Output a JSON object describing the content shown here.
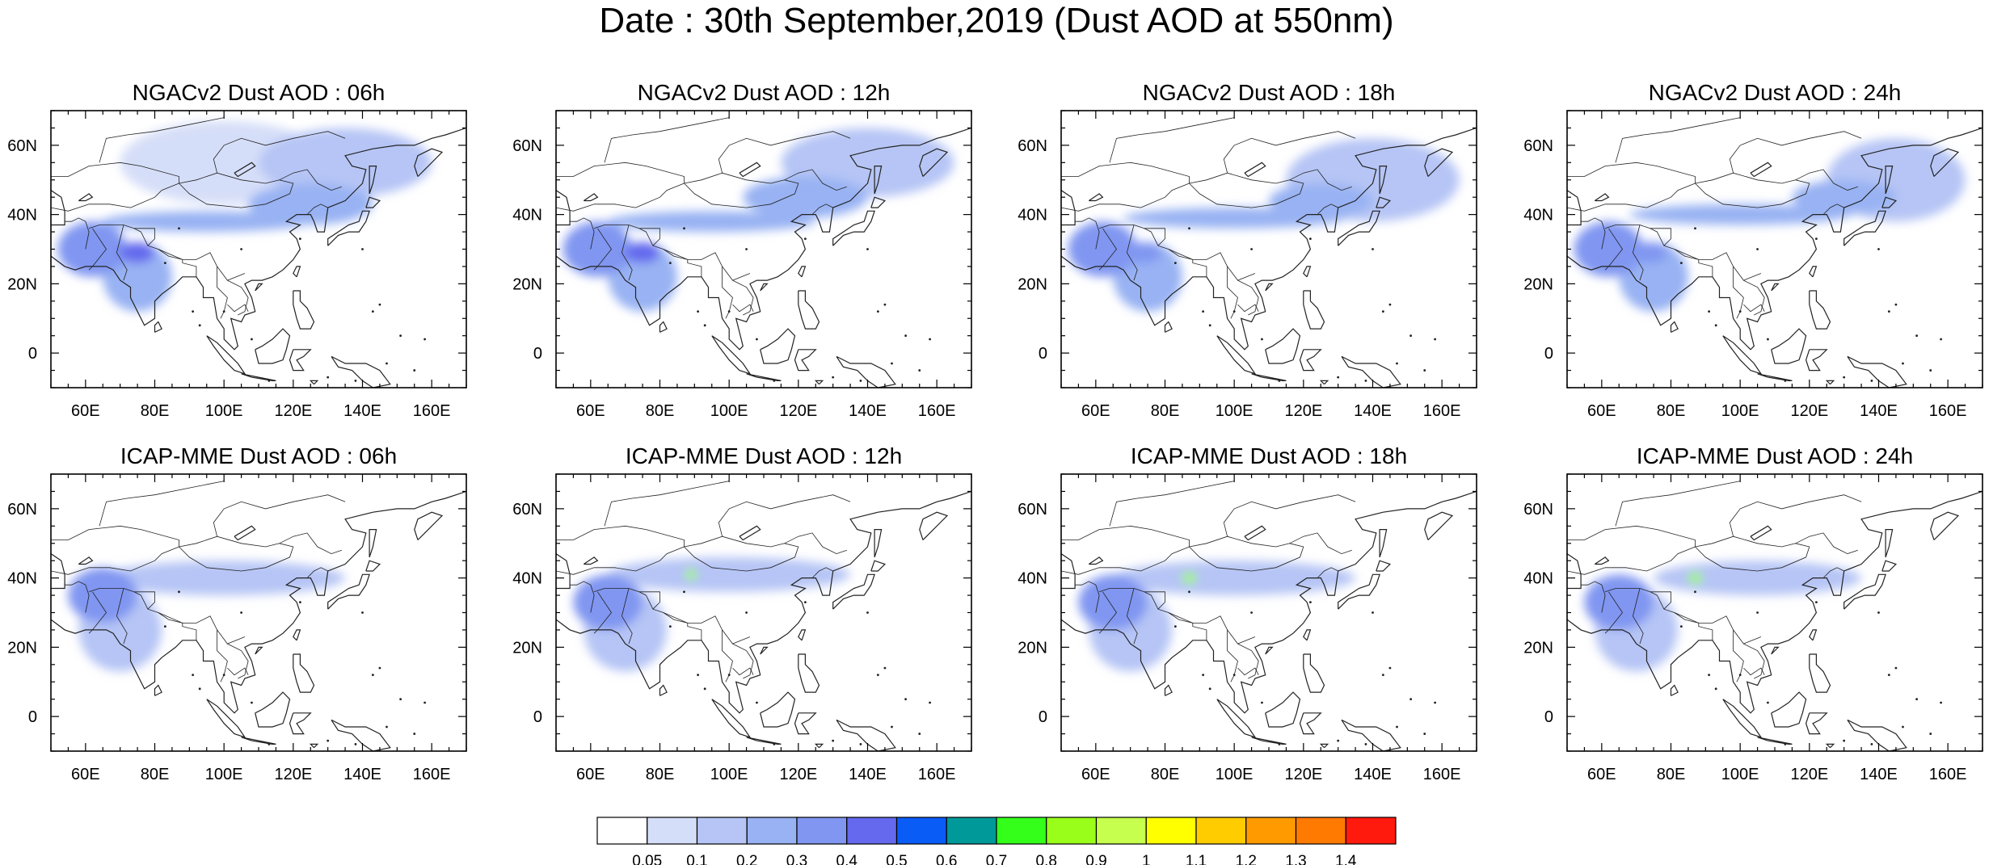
{
  "figure": {
    "title": "Date : 30th September,2019 (Dust AOD at 550nm)"
  },
  "panels": [
    {
      "title": "NGACv2 Dust AOD : 06h",
      "model": "NGACv2",
      "hour": "06h",
      "row": 0,
      "col": 0
    },
    {
      "title": "NGACv2 Dust AOD : 12h",
      "model": "NGACv2",
      "hour": "12h",
      "row": 0,
      "col": 1
    },
    {
      "title": "NGACv2 Dust AOD : 18h",
      "model": "NGACv2",
      "hour": "18h",
      "row": 0,
      "col": 2
    },
    {
      "title": "NGACv2 Dust AOD : 24h",
      "model": "NGACv2",
      "hour": "24h",
      "row": 0,
      "col": 3
    },
    {
      "title": "ICAP-MME Dust AOD : 06h",
      "model": "ICAP-MME",
      "hour": "06h",
      "row": 1,
      "col": 0
    },
    {
      "title": "ICAP-MME Dust AOD : 12h",
      "model": "ICAP-MME",
      "hour": "12h",
      "row": 1,
      "col": 1
    },
    {
      "title": "ICAP-MME Dust AOD : 18h",
      "model": "ICAP-MME",
      "hour": "18h",
      "row": 1,
      "col": 2
    },
    {
      "title": "ICAP-MME Dust AOD : 24h",
      "model": "ICAP-MME",
      "hour": "24h",
      "row": 1,
      "col": 3
    }
  ],
  "map_axes": {
    "lon_range": [
      50,
      170
    ],
    "lat_range": [
      -10,
      70
    ],
    "lon_ticks": [
      {
        "value": 60,
        "label": "60E"
      },
      {
        "value": 80,
        "label": "80E"
      },
      {
        "value": 100,
        "label": "100E"
      },
      {
        "value": 120,
        "label": "120E"
      },
      {
        "value": 140,
        "label": "140E"
      },
      {
        "value": 160,
        "label": "160E"
      }
    ],
    "lat_ticks": [
      {
        "value": 60,
        "label": "60N"
      },
      {
        "value": 40,
        "label": "40N"
      },
      {
        "value": 20,
        "label": "20N"
      },
      {
        "value": 0,
        "label": "0"
      }
    ]
  },
  "colorbar": {
    "colors": [
      "#ffffff",
      "#d5def8",
      "#b6c5f5",
      "#98b2f3",
      "#8096f1",
      "#6469ee",
      "#0a5cf7",
      "#009999",
      "#33ff1a",
      "#99ff1a",
      "#c6ff4d",
      "#ffff00",
      "#ffcc00",
      "#ff9a00",
      "#ff7a00",
      "#ff1a0d"
    ],
    "labels": [
      "0.05",
      "0.1",
      "0.2",
      "0.3",
      "0.4",
      "0.5",
      "0.6",
      "0.7",
      "0.8",
      "0.9",
      "1",
      "1.1",
      "1.2",
      "1.3",
      "1.4"
    ]
  },
  "aod_fields": {
    "NGACv2": {
      "06h": [
        {
          "lon": 95,
          "lat": 38,
          "aod": 0.2,
          "rx": 30,
          "ry": 3
        },
        {
          "lon": 125,
          "lat": 43,
          "aod": 0.2,
          "rx": 18,
          "ry": 6
        },
        {
          "lon": 75,
          "lat": 29,
          "aod": 0.4,
          "rx": 5,
          "ry": 3
        },
        {
          "lon": 62,
          "lat": 30,
          "aod": 0.3,
          "rx": 10,
          "ry": 8
        },
        {
          "lon": 75,
          "lat": 22,
          "aod": 0.2,
          "rx": 10,
          "ry": 10
        },
        {
          "lon": 135,
          "lat": 55,
          "aod": 0.1,
          "rx": 25,
          "ry": 10
        },
        {
          "lon": 100,
          "lat": 55,
          "aod": 0.05,
          "rx": 30,
          "ry": 12
        }
      ],
      "12h": [
        {
          "lon": 95,
          "lat": 38,
          "aod": 0.2,
          "rx": 30,
          "ry": 3
        },
        {
          "lon": 122,
          "lat": 45,
          "aod": 0.2,
          "rx": 18,
          "ry": 6
        },
        {
          "lon": 75,
          "lat": 29,
          "aod": 0.4,
          "rx": 5,
          "ry": 3
        },
        {
          "lon": 62,
          "lat": 30,
          "aod": 0.3,
          "rx": 10,
          "ry": 8
        },
        {
          "lon": 75,
          "lat": 22,
          "aod": 0.2,
          "rx": 10,
          "ry": 10
        },
        {
          "lon": 140,
          "lat": 55,
          "aod": 0.1,
          "rx": 25,
          "ry": 10
        }
      ],
      "18h": [
        {
          "lon": 100,
          "lat": 39,
          "aod": 0.2,
          "rx": 32,
          "ry": 3
        },
        {
          "lon": 125,
          "lat": 44,
          "aod": 0.2,
          "rx": 15,
          "ry": 5
        },
        {
          "lon": 74,
          "lat": 29,
          "aod": 0.3,
          "rx": 5,
          "ry": 3
        },
        {
          "lon": 62,
          "lat": 30,
          "aod": 0.3,
          "rx": 10,
          "ry": 8
        },
        {
          "lon": 75,
          "lat": 22,
          "aod": 0.2,
          "rx": 10,
          "ry": 10
        },
        {
          "lon": 140,
          "lat": 50,
          "aod": 0.1,
          "rx": 25,
          "ry": 12
        }
      ],
      "24h": [
        {
          "lon": 100,
          "lat": 40,
          "aod": 0.2,
          "rx": 32,
          "ry": 3
        },
        {
          "lon": 130,
          "lat": 45,
          "aod": 0.2,
          "rx": 15,
          "ry": 5
        },
        {
          "lon": 74,
          "lat": 29,
          "aod": 0.3,
          "rx": 5,
          "ry": 3
        },
        {
          "lon": 62,
          "lat": 30,
          "aod": 0.3,
          "rx": 10,
          "ry": 8
        },
        {
          "lon": 75,
          "lat": 22,
          "aod": 0.2,
          "rx": 10,
          "ry": 10
        },
        {
          "lon": 145,
          "lat": 50,
          "aod": 0.1,
          "rx": 20,
          "ry": 12
        }
      ]
    },
    "ICAP-MME": {
      "06h": [
        {
          "lon": 100,
          "lat": 40,
          "aod": 0.1,
          "rx": 35,
          "ry": 5
        },
        {
          "lon": 65,
          "lat": 35,
          "aod": 0.3,
          "rx": 10,
          "ry": 8
        },
        {
          "lon": 70,
          "lat": 25,
          "aod": 0.1,
          "rx": 12,
          "ry": 12
        }
      ],
      "12h": [
        {
          "lon": 100,
          "lat": 41,
          "aod": 0.1,
          "rx": 35,
          "ry": 5
        },
        {
          "lon": 89,
          "lat": 41,
          "aod": 0.8,
          "rx": 1.5,
          "ry": 1.5
        },
        {
          "lon": 65,
          "lat": 33,
          "aod": 0.3,
          "rx": 10,
          "ry": 8
        },
        {
          "lon": 70,
          "lat": 25,
          "aod": 0.1,
          "rx": 12,
          "ry": 12
        }
      ],
      "18h": [
        {
          "lon": 100,
          "lat": 40,
          "aod": 0.1,
          "rx": 35,
          "ry": 5
        },
        {
          "lon": 87,
          "lat": 40,
          "aod": 0.8,
          "rx": 2,
          "ry": 1.5
        },
        {
          "lon": 65,
          "lat": 33,
          "aod": 0.3,
          "rx": 10,
          "ry": 8
        },
        {
          "lon": 70,
          "lat": 25,
          "aod": 0.1,
          "rx": 12,
          "ry": 12
        }
      ],
      "24h": [
        {
          "lon": 105,
          "lat": 40,
          "aod": 0.1,
          "rx": 30,
          "ry": 5
        },
        {
          "lon": 87,
          "lat": 40,
          "aod": 0.8,
          "rx": 2,
          "ry": 1.5
        },
        {
          "lon": 65,
          "lat": 33,
          "aod": 0.3,
          "rx": 10,
          "ry": 8
        },
        {
          "lon": 70,
          "lat": 25,
          "aod": 0.1,
          "rx": 12,
          "ry": 12
        }
      ]
    }
  }
}
